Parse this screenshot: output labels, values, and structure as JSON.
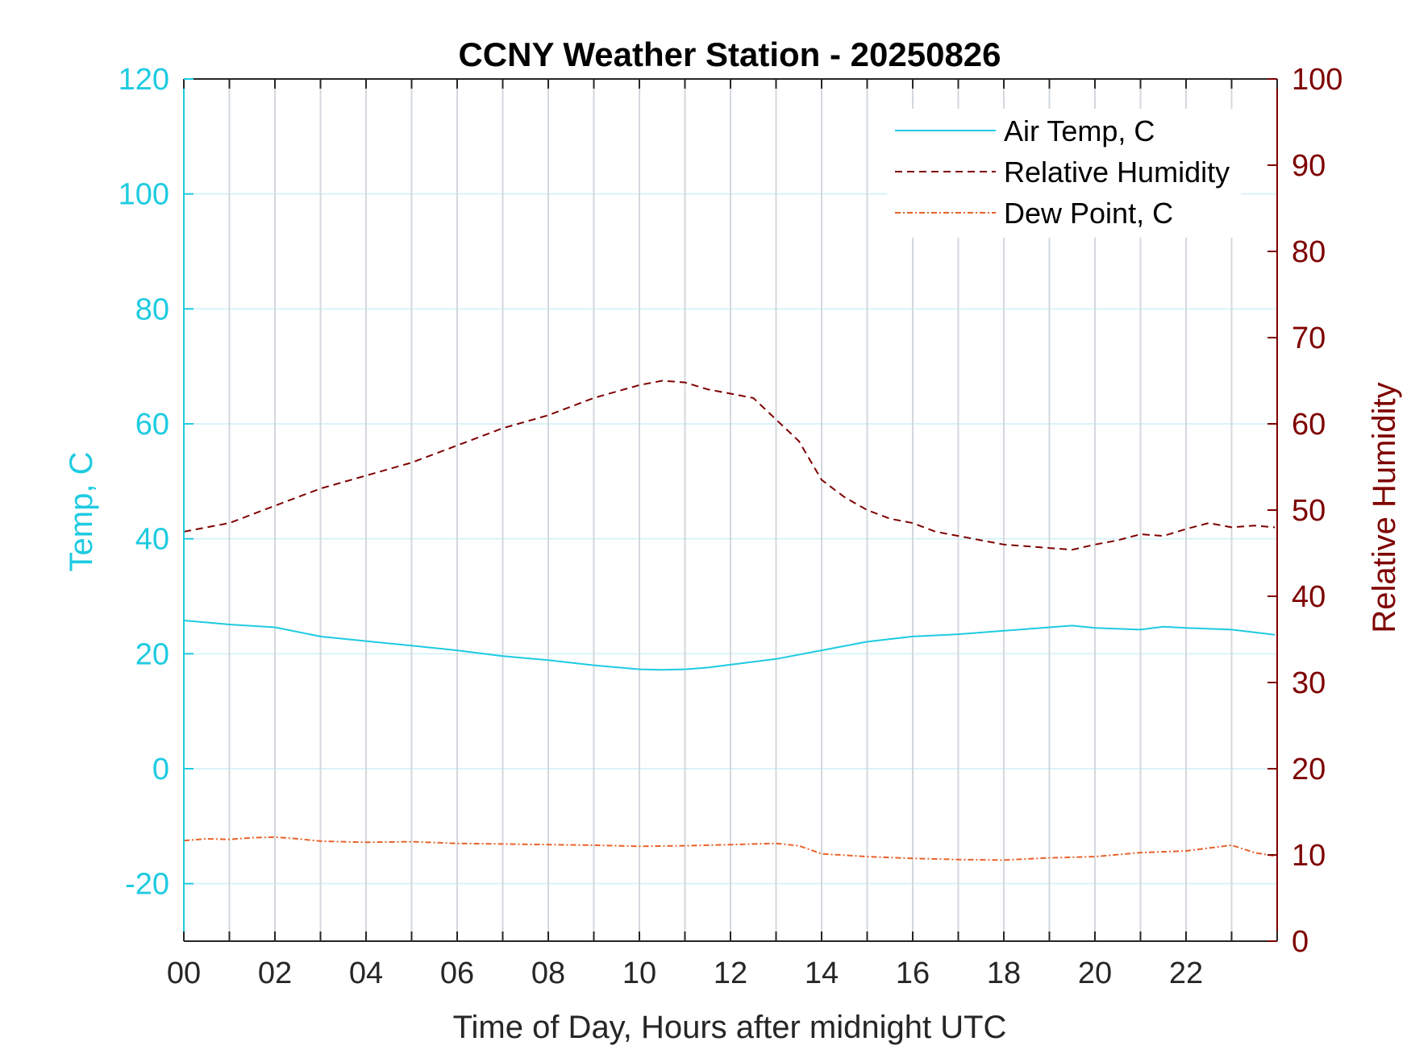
{
  "chart_data": {
    "type": "line",
    "title": "CCNY Weather Station - 20250826",
    "xlabel": "Time of Day, Hours after midnight UTC",
    "ylabel_left": "Temp, C",
    "ylabel_right": "Relative Humidity",
    "xlim": [
      0,
      24
    ],
    "ylim_left": [
      -30,
      120
    ],
    "ylim_right": [
      0,
      100
    ],
    "x_ticks": [
      0,
      2,
      4,
      6,
      8,
      10,
      12,
      14,
      16,
      18,
      20,
      22
    ],
    "x_tick_labels": [
      "00",
      "02",
      "04",
      "06",
      "08",
      "10",
      "12",
      "14",
      "16",
      "18",
      "20",
      "22"
    ],
    "y_left_ticks": [
      -20,
      0,
      20,
      40,
      60,
      80,
      100,
      120
    ],
    "y_left_tick_labels": [
      "-20",
      "0",
      "20",
      "40",
      "60",
      "80",
      "100",
      "120"
    ],
    "y_right_ticks": [
      0,
      10,
      20,
      30,
      40,
      50,
      60,
      70,
      80,
      90,
      100
    ],
    "y_right_tick_labels": [
      "0",
      "10",
      "20",
      "30",
      "40",
      "50",
      "60",
      "70",
      "80",
      "90",
      "100"
    ],
    "grid": true,
    "legend_position": "top-right",
    "colors": {
      "temp": "#1ECBE1",
      "rh": "#7E0000",
      "dew": "#E8622A",
      "grid_h": "#D9F3F8",
      "grid_v": "#D3D8DE",
      "axis_x": "#262626"
    },
    "series": [
      {
        "name": "Air Temp, C",
        "axis": "left",
        "style": "solid",
        "x": [
          0,
          1,
          2,
          3,
          4,
          5,
          6,
          7,
          8,
          9,
          10,
          10.5,
          11,
          11.5,
          12,
          13,
          14,
          15,
          16,
          17,
          18,
          19,
          19.5,
          20,
          21,
          21.5,
          22,
          23,
          23.95
        ],
        "y": [
          25.8,
          25.1,
          24.6,
          23.0,
          22.2,
          21.4,
          20.6,
          19.6,
          18.9,
          18.0,
          17.3,
          17.2,
          17.3,
          17.6,
          18.1,
          19.1,
          20.6,
          22.1,
          23.0,
          23.4,
          24.0,
          24.6,
          24.9,
          24.5,
          24.2,
          24.7,
          24.5,
          24.2,
          23.3
        ]
      },
      {
        "name": "Relative Humidity",
        "axis": "right",
        "style": "dashed",
        "x": [
          0,
          1,
          2,
          3,
          4,
          5,
          6,
          7,
          8,
          9,
          10,
          10.5,
          11,
          11.5,
          12,
          12.5,
          13,
          13.5,
          14,
          14.5,
          15,
          15.5,
          16,
          16.5,
          17,
          17.5,
          18,
          18.5,
          19,
          19.5,
          20,
          20.5,
          21,
          21.5,
          22,
          22.5,
          23,
          23.5,
          23.95
        ],
        "y": [
          47.5,
          48.5,
          50.5,
          52.5,
          54.0,
          55.5,
          57.5,
          59.5,
          61.0,
          63.0,
          64.5,
          65.0,
          64.8,
          64.0,
          63.5,
          63.0,
          60.5,
          58.0,
          53.5,
          51.5,
          50.0,
          49.0,
          48.5,
          47.5,
          47.0,
          46.5,
          46.0,
          45.8,
          45.6,
          45.4,
          46.0,
          46.5,
          47.2,
          47.0,
          47.8,
          48.5,
          48.0,
          48.2,
          48.0
        ]
      },
      {
        "name": "Dew Point, C",
        "axis": "left",
        "style": "dash-dot",
        "x": [
          0,
          0.5,
          1,
          1.5,
          2,
          2.5,
          3,
          4,
          5,
          6,
          7,
          8,
          9,
          10,
          11,
          12,
          13,
          13.5,
          14,
          15,
          16,
          17,
          18,
          19,
          20,
          21,
          22,
          23,
          23.5,
          23.95
        ],
        "y": [
          -12.5,
          -12.2,
          -12.3,
          -12.0,
          -11.9,
          -12.2,
          -12.6,
          -12.8,
          -12.7,
          -13.0,
          -13.1,
          -13.2,
          -13.3,
          -13.5,
          -13.4,
          -13.2,
          -13.0,
          -13.4,
          -14.8,
          -15.3,
          -15.6,
          -15.8,
          -15.9,
          -15.5,
          -15.3,
          -14.6,
          -14.3,
          -13.3,
          -14.6,
          -15.2
        ]
      }
    ]
  }
}
